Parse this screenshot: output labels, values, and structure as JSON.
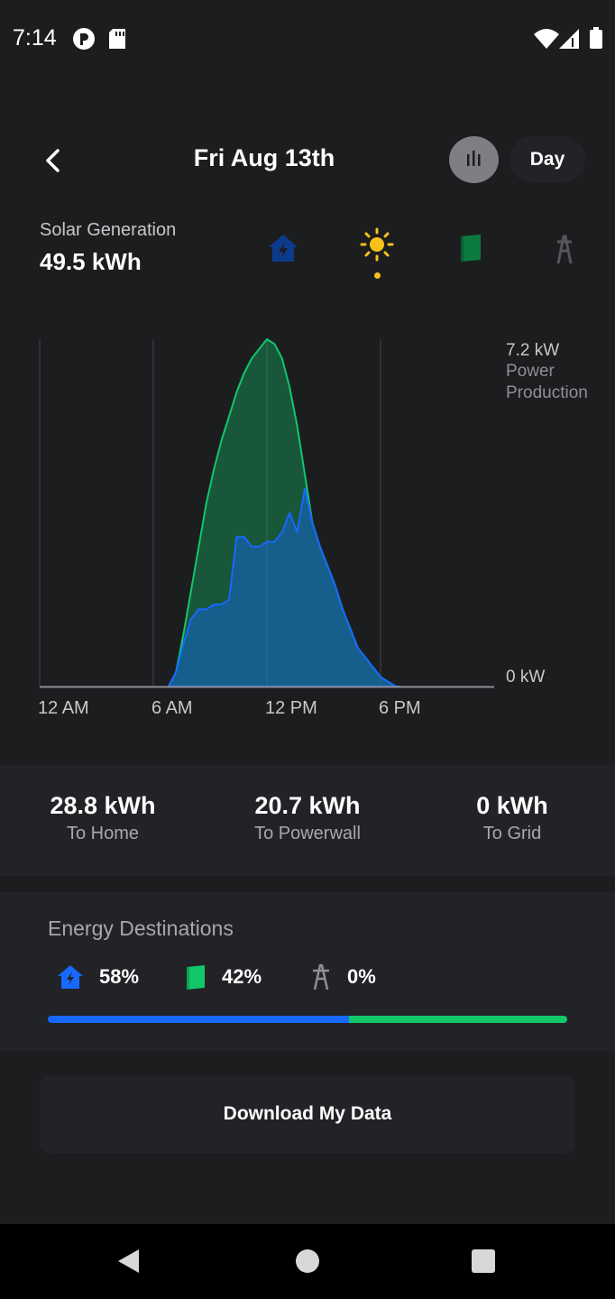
{
  "status_bar": {
    "time": "7:14"
  },
  "header": {
    "title": "Fri Aug 13th",
    "period": "Day"
  },
  "summary": {
    "label": "Solar Generation",
    "value": "49.5 kWh"
  },
  "filters": [
    {
      "name": "home",
      "color": "#1668ff",
      "selected": false
    },
    {
      "name": "solar",
      "color": "#f6c21a",
      "selected": true
    },
    {
      "name": "powerwall",
      "color": "#11c76a",
      "selected": false
    },
    {
      "name": "grid",
      "color": "#7e7f82",
      "selected": false
    }
  ],
  "chart": {
    "x_ticks": [
      "12 AM",
      "6 AM",
      "12 PM",
      "6 PM"
    ],
    "y_max_label": "7.2 kW",
    "y_min_label": "0 kW",
    "y_unit_line1": "Power",
    "y_unit_line2": "Production"
  },
  "chart_data": {
    "type": "area",
    "xlabel": "",
    "ylabel": "Power Production",
    "x_unit": "hour of day",
    "xlim": [
      0,
      24
    ],
    "ylim": [
      0,
      7.2
    ],
    "grid": true,
    "series": [
      {
        "name": "To Powerwall",
        "color": "#11c76a",
        "x": [
          6.8,
          7.2,
          7.6,
          8.0,
          8.4,
          8.8,
          9.2,
          9.6,
          10.0,
          10.4,
          10.8,
          11.2,
          11.6,
          12.0,
          12.4,
          12.8,
          13.2,
          13.6,
          14.0,
          14.4,
          14.8,
          15.2,
          15.6,
          16.0,
          16.4,
          16.8,
          17.2,
          17.6,
          18.0,
          18.4,
          18.8,
          19.0
        ],
        "values": [
          0.0,
          0.3,
          1.1,
          2.0,
          2.9,
          3.8,
          4.5,
          5.1,
          5.6,
          6.1,
          6.5,
          6.8,
          7.0,
          7.2,
          7.1,
          6.8,
          6.2,
          5.4,
          4.4,
          3.4,
          2.9,
          2.5,
          2.1,
          1.6,
          1.2,
          0.8,
          0.6,
          0.4,
          0.2,
          0.1,
          0.0,
          0.0
        ]
      },
      {
        "name": "To Home",
        "color": "#1668ff",
        "x": [
          6.8,
          7.2,
          7.6,
          8.0,
          8.4,
          8.8,
          9.2,
          9.6,
          10.0,
          10.4,
          10.8,
          11.2,
          11.6,
          12.0,
          12.4,
          12.8,
          13.2,
          13.6,
          14.0,
          14.4,
          14.8,
          15.2,
          15.6,
          16.0,
          16.4,
          16.8,
          17.2,
          17.6,
          18.0,
          18.4,
          18.8,
          19.0
        ],
        "values": [
          0.0,
          0.3,
          0.9,
          1.4,
          1.6,
          1.6,
          1.7,
          1.7,
          1.8,
          3.1,
          3.1,
          2.9,
          2.9,
          3.0,
          3.0,
          3.2,
          3.6,
          3.2,
          4.1,
          3.4,
          2.9,
          2.5,
          2.1,
          1.6,
          1.2,
          0.8,
          0.6,
          0.4,
          0.2,
          0.1,
          0.0,
          0.0
        ]
      }
    ]
  },
  "stats": [
    {
      "value": "28.8 kWh",
      "label": "To Home"
    },
    {
      "value": "20.7 kWh",
      "label": "To Powerwall"
    },
    {
      "value": "0 kWh",
      "label": "To Grid"
    }
  ],
  "destinations": {
    "title": "Energy Destinations",
    "items": [
      {
        "name": "home",
        "percent": "58%",
        "fraction": 0.58,
        "color": "#1668ff"
      },
      {
        "name": "powerwall",
        "percent": "42%",
        "fraction": 0.42,
        "color": "#11c76a"
      },
      {
        "name": "grid",
        "percent": "0%",
        "fraction": 0.0,
        "color": "#7e7f82"
      }
    ]
  },
  "download": {
    "label": "Download My Data"
  }
}
